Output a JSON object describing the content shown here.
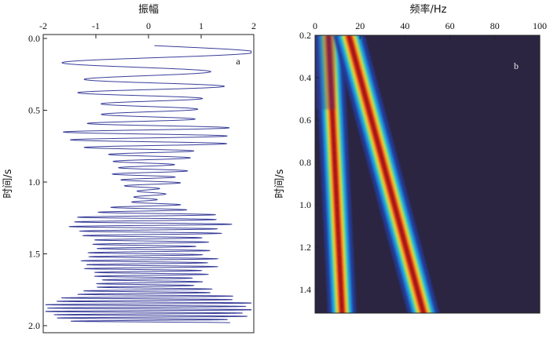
{
  "chart_data": [
    {
      "type": "line",
      "panel_label": "a",
      "xlabel": "振幅",
      "ylabel": "时间/s",
      "xlim": [
        -2,
        2
      ],
      "ylim": [
        0.0,
        2.05
      ],
      "y_inverted": true,
      "x_axis_position": "top",
      "xticks": [
        "-2",
        "-1",
        "0",
        "1",
        "2"
      ],
      "yticks": [
        "0.0",
        "0.5",
        "1.0",
        "1.5",
        "2.0"
      ],
      "line_color": "#3a3f9a",
      "series": [
        {
          "description_values": "chirp-like oscillating amplitude",
          "t_start": 0.05,
          "t_end": 1.98,
          "amplitude_range": [
            -2,
            2
          ],
          "frequency_start_hz": 5,
          "frequency_end_hz": 45
        }
      ]
    },
    {
      "type": "heatmap",
      "panel_label": "b",
      "xlabel": "频率/Hz",
      "ylabel": "时间/s",
      "xlim": [
        0,
        100
      ],
      "ylim": [
        0.2,
        1.5
      ],
      "y_inverted": true,
      "x_axis_position": "top",
      "xticks": [
        "0",
        "20",
        "40",
        "60",
        "80",
        "100"
      ],
      "yticks": [
        "0.2",
        "0.4",
        "0.6",
        "0.8",
        "1.0",
        "1.2",
        "1.4"
      ],
      "background_color": "#2b2541",
      "ridges": [
        {
          "t": [
            0.2,
            1.5
          ],
          "f": [
            6,
            12
          ]
        },
        {
          "t": [
            0.2,
            1.5
          ],
          "f": [
            15,
            48
          ]
        }
      ]
    }
  ]
}
